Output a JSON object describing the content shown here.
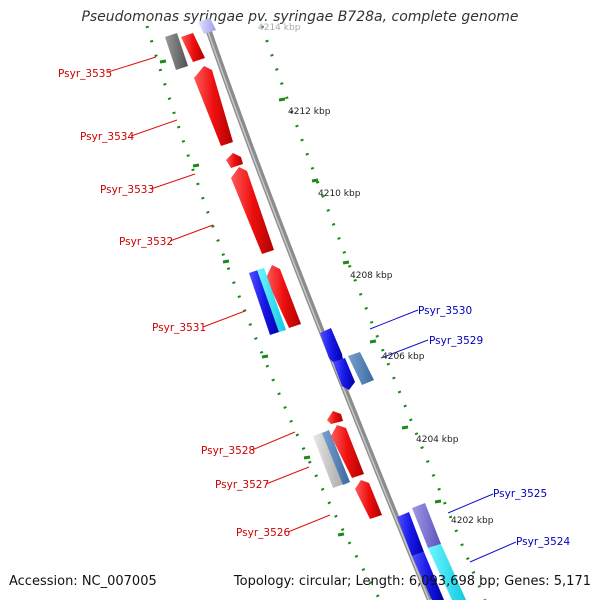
{
  "title": "Pseudomonas syringae pv. syringae B728a, complete genome",
  "footer": {
    "accession": "Accession: NC_007005",
    "topology": "Topology: circular; Length: 6,093,698 bp; Genes: 5,171"
  },
  "scale": {
    "unit": "kbp",
    "ticks": [
      {
        "label": "4214 kbp"
      },
      {
        "label": "4212 kbp"
      },
      {
        "label": "4210 kbp"
      },
      {
        "label": "4208 kbp"
      },
      {
        "label": "4206 kbp"
      },
      {
        "label": "4204 kbp"
      },
      {
        "label": "4202 kbp"
      }
    ]
  },
  "genes": [
    {
      "label": "Psyr_3535",
      "strand": "reverse",
      "color": "#dd1111"
    },
    {
      "label": "Psyr_3534",
      "strand": "reverse",
      "color": "#dd1111"
    },
    {
      "label": "Psyr_3533",
      "strand": "reverse",
      "color": "#dd1111"
    },
    {
      "label": "Psyr_3532",
      "strand": "reverse",
      "color": "#dd1111"
    },
    {
      "label": "Psyr_3531",
      "strand": "reverse",
      "color": "#dd1111"
    },
    {
      "label": "Psyr_3530",
      "strand": "forward",
      "color": "#1111cc"
    },
    {
      "label": "Psyr_3529",
      "strand": "forward",
      "color": "#1111cc"
    },
    {
      "label": "Psyr_3528",
      "strand": "reverse",
      "color": "#dd1111"
    },
    {
      "label": "Psyr_3527",
      "strand": "reverse",
      "color": "#dd1111"
    },
    {
      "label": "Psyr_3526",
      "strand": "reverse",
      "color": "#dd1111"
    },
    {
      "label": "Psyr_3525",
      "strand": "forward",
      "color": "#1111cc"
    },
    {
      "label": "Psyr_3524",
      "strand": "forward",
      "color": "#1111cc"
    }
  ],
  "colors": {
    "reverse_cds": "#ee1111",
    "forward_cds": "#1a1ae6",
    "backbone": "#8c8c8c",
    "tick": "#1a8a1a",
    "reverse_label": "#cc0000",
    "forward_label": "#0000bb"
  }
}
